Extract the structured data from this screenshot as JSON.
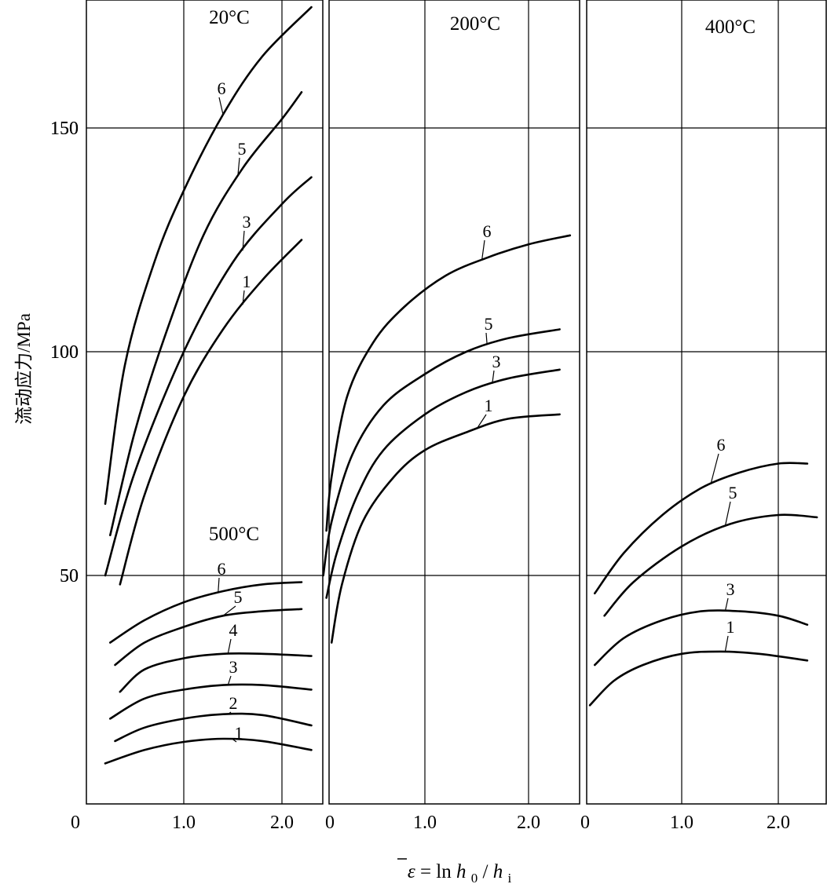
{
  "figure": {
    "ylabel": "流动应力/MPa",
    "xlabel_parts": {
      "eps": "ε",
      "eq": " = ln ",
      "h0": "h",
      "sub0": "0",
      "slash": " /",
      "hi": "h",
      "subi": "i"
    },
    "origin_label": "0",
    "colors": {
      "curve": "#000000",
      "grid": "#000000",
      "background": "#ffffff"
    }
  },
  "chart_data": [
    {
      "type": "line",
      "title": "20°C",
      "xlim": [
        0,
        2.4
      ],
      "ylim": [
        0,
        175
      ],
      "xticks": [
        "1.0",
        "2.0"
      ],
      "yticks": [
        "50",
        "100",
        "150"
      ],
      "grid": true,
      "series": [
        {
          "name": "1",
          "x": [
            0.35,
            0.6,
            1.0,
            1.4,
            1.8,
            2.2
          ],
          "y": [
            48,
            68,
            90,
            105,
            116,
            125
          ]
        },
        {
          "name": "3",
          "x": [
            0.2,
            0.5,
            1.0,
            1.5,
            2.0,
            2.3
          ],
          "y": [
            50,
            73,
            100,
            120,
            133,
            139
          ]
        },
        {
          "name": "5",
          "x": [
            0.25,
            0.5,
            0.8,
            1.2,
            1.6,
            2.0,
            2.2
          ],
          "y": [
            59,
            82,
            103,
            126,
            141,
            152,
            158
          ]
        },
        {
          "name": "6",
          "x": [
            0.2,
            0.4,
            0.7,
            1.0,
            1.4,
            1.8,
            2.3
          ],
          "y": [
            66,
            97,
            120,
            136,
            153,
            166,
            177
          ]
        }
      ]
    },
    {
      "type": "line",
      "title": "500°C",
      "xlim": [
        0,
        2.4
      ],
      "ylim": [
        0,
        175
      ],
      "xticks": [
        "1.0",
        "2.0"
      ],
      "yticks": [
        "50",
        "100",
        "150"
      ],
      "grid": true,
      "series": [
        {
          "name": "1",
          "x": [
            0.2,
            0.6,
            1.0,
            1.4,
            1.8,
            2.3
          ],
          "y": [
            8,
            11,
            12.8,
            13.5,
            13,
            11
          ]
        },
        {
          "name": "2",
          "x": [
            0.3,
            0.6,
            1.0,
            1.4,
            1.8,
            2.3
          ],
          "y": [
            13,
            16,
            18,
            19,
            18.8,
            16.5
          ]
        },
        {
          "name": "3",
          "x": [
            0.25,
            0.6,
            1.0,
            1.4,
            1.8,
            2.3
          ],
          "y": [
            18,
            22.5,
            24.5,
            25.5,
            25.5,
            24.5
          ]
        },
        {
          "name": "4",
          "x": [
            0.35,
            0.6,
            1.0,
            1.4,
            1.8,
            2.3
          ],
          "y": [
            24,
            29,
            31.5,
            32.5,
            32.5,
            32
          ]
        },
        {
          "name": "5",
          "x": [
            0.3,
            0.6,
            1.0,
            1.4,
            1.8,
            2.2
          ],
          "y": [
            30,
            35,
            38.5,
            41,
            42,
            42.5
          ]
        },
        {
          "name": "6",
          "x": [
            0.25,
            0.6,
            1.0,
            1.4,
            1.8,
            2.2
          ],
          "y": [
            35,
            40,
            44,
            46.5,
            48,
            48.5
          ]
        }
      ]
    },
    {
      "type": "line",
      "title": "200°C",
      "xlim": [
        0,
        2.4
      ],
      "ylim": [
        0,
        175
      ],
      "xticks": [
        "1.0",
        "2.0"
      ],
      "yticks": [],
      "grid": true,
      "series": [
        {
          "name": "1",
          "x": [
            0.1,
            0.2,
            0.4,
            0.7,
            1.0,
            1.4,
            1.8,
            2.3
          ],
          "y": [
            35,
            48,
            62,
            72,
            78,
            82,
            85,
            86
          ]
        },
        {
          "name": "3",
          "x": [
            0.05,
            0.15,
            0.35,
            0.6,
            1.0,
            1.4,
            1.8,
            2.3
          ],
          "y": [
            45,
            55,
            68,
            78,
            86,
            91,
            94,
            96
          ]
        },
        {
          "name": "5",
          "x": [
            0.02,
            0.1,
            0.3,
            0.6,
            1.0,
            1.4,
            1.8,
            2.3
          ],
          "y": [
            50,
            62,
            77,
            88,
            95,
            100,
            103,
            105
          ]
        },
        {
          "name": "6",
          "x": [
            0.05,
            0.1,
            0.25,
            0.5,
            0.8,
            1.2,
            1.6,
            2.0,
            2.4
          ],
          "y": [
            60,
            72,
            90,
            102,
            110,
            117,
            121,
            124,
            126
          ]
        }
      ]
    },
    {
      "type": "line",
      "title": "400°C",
      "xlim": [
        0,
        2.4
      ],
      "ylim": [
        0,
        175
      ],
      "xticks": [
        "1.0",
        "2.0"
      ],
      "yticks": [],
      "grid": true,
      "series": [
        {
          "name": "1",
          "x": [
            0.05,
            0.3,
            0.6,
            1.0,
            1.4,
            1.8,
            2.3
          ],
          "y": [
            21,
            26.5,
            30,
            32.5,
            33,
            32.5,
            31
          ]
        },
        {
          "name": "3",
          "x": [
            0.1,
            0.4,
            0.8,
            1.2,
            1.6,
            2.0,
            2.3
          ],
          "y": [
            30,
            36,
            40,
            42,
            42,
            41,
            39
          ]
        },
        {
          "name": "5",
          "x": [
            0.2,
            0.5,
            1.0,
            1.5,
            2.0,
            2.4
          ],
          "y": [
            41,
            48.5,
            56.5,
            61.5,
            63.5,
            63
          ]
        },
        {
          "name": "6",
          "x": [
            0.1,
            0.4,
            0.8,
            1.2,
            1.6,
            2.0,
            2.3
          ],
          "y": [
            46,
            55,
            63.5,
            69.5,
            73,
            75,
            75
          ]
        }
      ]
    }
  ]
}
